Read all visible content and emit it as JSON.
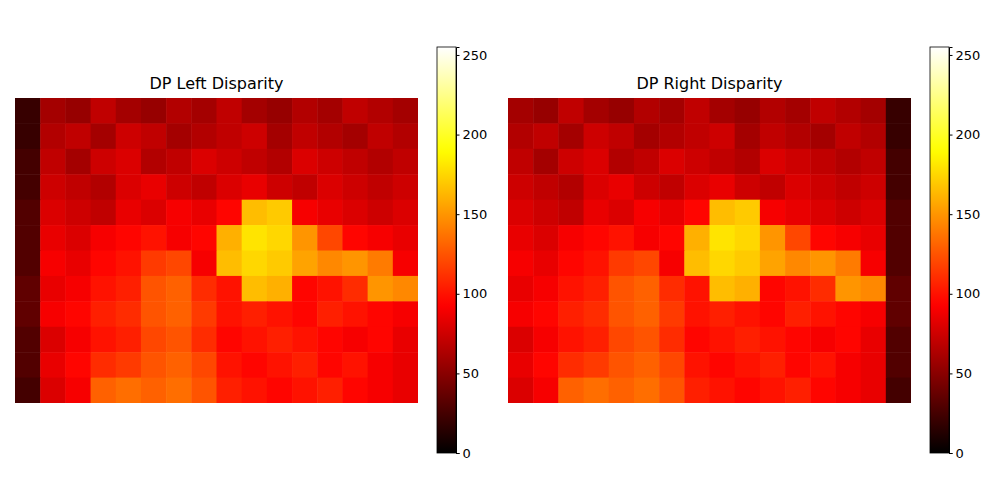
{
  "chart_data": [
    {
      "type": "heatmap",
      "title": "DP Left Disparity",
      "tick_labels": false,
      "zlim": [
        0,
        255
      ],
      "zticks": [
        0,
        50,
        100,
        150,
        200,
        250
      ],
      "z": [
        [
          20,
          60,
          55,
          70,
          60,
          55,
          65,
          60,
          70,
          60,
          55,
          65,
          60,
          70,
          65,
          60
        ],
        [
          20,
          65,
          70,
          60,
          75,
          70,
          60,
          65,
          70,
          75,
          60,
          70,
          65,
          60,
          70,
          65
        ],
        [
          25,
          70,
          60,
          75,
          80,
          65,
          70,
          80,
          75,
          70,
          65,
          80,
          75,
          70,
          65,
          70
        ],
        [
          25,
          75,
          70,
          65,
          80,
          85,
          75,
          70,
          80,
          85,
          75,
          70,
          80,
          75,
          70,
          75
        ],
        [
          30,
          80,
          75,
          70,
          85,
          80,
          90,
          85,
          95,
          165,
          170,
          90,
          85,
          80,
          75,
          80
        ],
        [
          30,
          85,
          80,
          90,
          95,
          100,
          90,
          95,
          160,
          180,
          175,
          150,
          120,
          95,
          90,
          85
        ],
        [
          30,
          90,
          85,
          95,
          100,
          115,
          120,
          90,
          165,
          175,
          170,
          155,
          145,
          150,
          140,
          90
        ],
        [
          35,
          85,
          90,
          100,
          105,
          125,
          130,
          110,
          100,
          165,
          160,
          95,
          100,
          110,
          150,
          145
        ],
        [
          35,
          90,
          95,
          105,
          110,
          125,
          130,
          115,
          100,
          105,
          100,
          95,
          105,
          100,
          95,
          90
        ],
        [
          30,
          80,
          90,
          100,
          105,
          120,
          125,
          110,
          95,
          100,
          105,
          100,
          95,
          90,
          95,
          85
        ],
        [
          30,
          85,
          95,
          110,
          115,
          125,
          130,
          120,
          100,
          95,
          100,
          105,
          95,
          100,
          90,
          85
        ],
        [
          25,
          80,
          90,
          130,
          135,
          130,
          135,
          125,
          105,
          100,
          95,
          100,
          105,
          95,
          90,
          85
        ]
      ]
    },
    {
      "type": "heatmap",
      "title": "DP Right Disparity",
      "tick_labels": false,
      "zlim": [
        0,
        255
      ],
      "zticks": [
        0,
        50,
        100,
        150,
        200,
        250
      ],
      "z": [
        [
          60,
          55,
          70,
          60,
          55,
          65,
          60,
          70,
          60,
          55,
          65,
          60,
          70,
          65,
          60,
          20
        ],
        [
          65,
          70,
          60,
          75,
          70,
          60,
          65,
          70,
          75,
          60,
          70,
          65,
          60,
          70,
          65,
          20
        ],
        [
          70,
          60,
          75,
          80,
          65,
          70,
          80,
          75,
          70,
          65,
          80,
          75,
          70,
          65,
          70,
          25
        ],
        [
          75,
          70,
          65,
          80,
          85,
          75,
          70,
          80,
          85,
          75,
          70,
          80,
          75,
          70,
          75,
          25
        ],
        [
          80,
          75,
          70,
          85,
          80,
          90,
          85,
          95,
          165,
          170,
          90,
          85,
          80,
          75,
          80,
          30
        ],
        [
          85,
          80,
          90,
          95,
          100,
          90,
          95,
          160,
          180,
          175,
          150,
          120,
          95,
          90,
          85,
          30
        ],
        [
          90,
          85,
          95,
          100,
          115,
          120,
          90,
          165,
          175,
          170,
          155,
          145,
          150,
          140,
          90,
          30
        ],
        [
          85,
          90,
          100,
          105,
          125,
          130,
          110,
          100,
          165,
          160,
          95,
          100,
          110,
          150,
          145,
          35
        ],
        [
          90,
          95,
          105,
          110,
          125,
          130,
          115,
          100,
          105,
          100,
          95,
          105,
          100,
          95,
          90,
          35
        ],
        [
          80,
          90,
          100,
          105,
          120,
          125,
          110,
          95,
          100,
          105,
          100,
          95,
          90,
          95,
          85,
          30
        ],
        [
          85,
          95,
          110,
          115,
          125,
          130,
          120,
          100,
          95,
          100,
          105,
          95,
          100,
          90,
          85,
          30
        ],
        [
          80,
          90,
          130,
          135,
          130,
          135,
          125,
          105,
          100,
          95,
          100,
          105,
          95,
          90,
          85,
          25
        ]
      ]
    }
  ]
}
